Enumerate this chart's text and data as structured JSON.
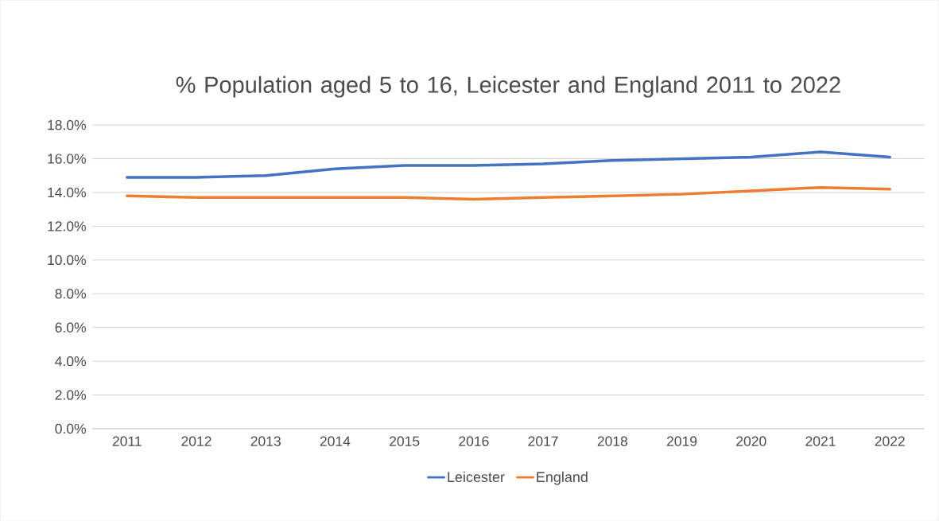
{
  "chart_data": {
    "type": "line",
    "title": "% Population aged 5 to 16, Leicester and England 2011 to 2022",
    "categories": [
      "2011",
      "2012",
      "2013",
      "2014",
      "2015",
      "2016",
      "2017",
      "2018",
      "2019",
      "2020",
      "2021",
      "2022"
    ],
    "series": [
      {
        "name": "Leicester",
        "color": "#4472c4",
        "values": [
          14.9,
          14.9,
          15.0,
          15.4,
          15.6,
          15.6,
          15.7,
          15.9,
          16.0,
          16.1,
          16.4,
          16.1
        ]
      },
      {
        "name": "England",
        "color": "#ed7d31",
        "values": [
          13.8,
          13.7,
          13.7,
          13.7,
          13.7,
          13.6,
          13.7,
          13.8,
          13.9,
          14.1,
          14.3,
          14.2
        ]
      }
    ],
    "ylim": [
      0,
      18
    ],
    "yticks": [
      {
        "value": 0,
        "label": "0.0%"
      },
      {
        "value": 2,
        "label": "2.0%"
      },
      {
        "value": 4,
        "label": "4.0%"
      },
      {
        "value": 6,
        "label": "6.0%"
      },
      {
        "value": 8,
        "label": "8.0%"
      },
      {
        "value": 10,
        "label": "10.0%"
      },
      {
        "value": 12,
        "label": "12.0%"
      },
      {
        "value": 14,
        "label": "14.0%"
      },
      {
        "value": 16,
        "label": "16.0%"
      },
      {
        "value": 18,
        "label": "18.0%"
      }
    ],
    "grid": "y",
    "legend": "bottom",
    "marker": "none",
    "line_style": "solid"
  }
}
